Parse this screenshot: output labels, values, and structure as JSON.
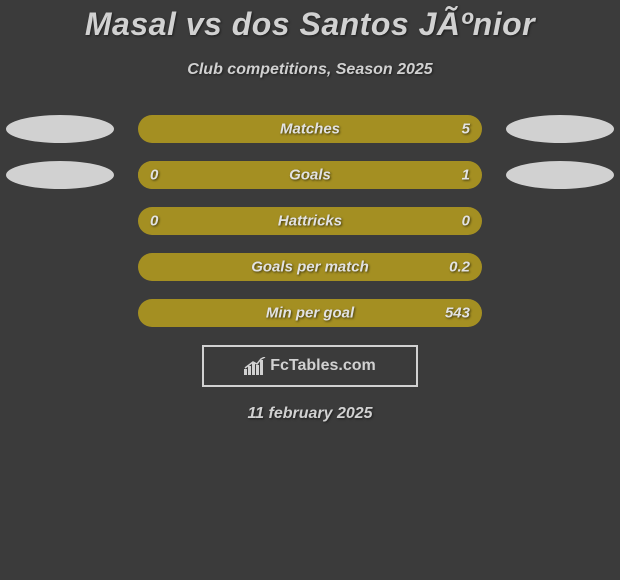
{
  "title": "Masal vs dos Santos JÃºnior",
  "subtitle": "Club competitions, Season 2025",
  "date": "11 february 2025",
  "logo_text": "FcTables.com",
  "colors": {
    "background": "#3b3b3b",
    "text": "#d1d1d1",
    "bar_track": "#a48f22",
    "bar_left": "#a48f22",
    "bar_right": "#a48f22",
    "ellipse": "#d1d1d1"
  },
  "stats": [
    {
      "label": "Matches",
      "left_value": "",
      "right_value": "5",
      "left_pct": 0,
      "right_pct": 100,
      "show_left_ellipse": true,
      "show_right_ellipse": true
    },
    {
      "label": "Goals",
      "left_value": "0",
      "right_value": "1",
      "left_pct": 18,
      "right_pct": 82,
      "show_left_ellipse": true,
      "show_right_ellipse": true
    },
    {
      "label": "Hattricks",
      "left_value": "0",
      "right_value": "0",
      "left_pct": 0,
      "right_pct": 100,
      "show_left_ellipse": false,
      "show_right_ellipse": false
    },
    {
      "label": "Goals per match",
      "left_value": "",
      "right_value": "0.2",
      "left_pct": 0,
      "right_pct": 100,
      "show_left_ellipse": false,
      "show_right_ellipse": false
    },
    {
      "label": "Min per goal",
      "left_value": "",
      "right_value": "543",
      "left_pct": 0,
      "right_pct": 100,
      "show_left_ellipse": false,
      "show_right_ellipse": false
    }
  ]
}
